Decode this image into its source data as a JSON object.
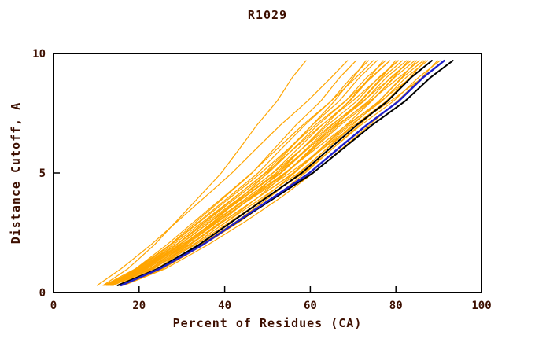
{
  "chart_data": {
    "type": "line",
    "title": "R1029",
    "xlabel": "Percent of Residues (CA)",
    "ylabel": "Distance Cutoff, A",
    "xlim": [
      0,
      100
    ],
    "ylim": [
      0,
      10
    ],
    "x_ticks": [
      0,
      20,
      40,
      60,
      80,
      100
    ],
    "y_ticks": [
      0,
      5,
      10
    ],
    "grid": false,
    "legend": false,
    "colors": {
      "orange": "#ffa500",
      "black": "#000000",
      "blue": "#2020cc",
      "axis": "#000000",
      "text": "#3d0f00"
    },
    "y_levels": [
      0.3,
      1,
      2,
      3,
      4,
      5,
      6,
      7,
      8,
      9,
      9.7
    ],
    "series": [
      {
        "color": "orange",
        "width": 1.2,
        "x": [
          11.6,
          17.4,
          23.6,
          28.8,
          34.0,
          39.2,
          43.4,
          47.5,
          52.2,
          55.8,
          59.0
        ]
      },
      {
        "color": "orange",
        "width": 1.2,
        "x": [
          10.2,
          15.8,
          22.8,
          29.1,
          35.4,
          41.7,
          47.3,
          53.0,
          59.3,
          64.9,
          68.7
        ]
      },
      {
        "color": "orange",
        "width": 1.2,
        "x": [
          12.5,
          19.5,
          27.2,
          33.6,
          40.0,
          46.4,
          51.5,
          56.6,
          62.4,
          66.9,
          70.7
        ]
      },
      {
        "color": "orange",
        "width": 1.2,
        "x": [
          14.9,
          22.7,
          30.5,
          37.6,
          44.1,
          50.0,
          55.2,
          60.4,
          65.6,
          70.1,
          73.0
        ]
      },
      {
        "color": "orange",
        "width": 1.2,
        "x": [
          11.8,
          19.2,
          27.4,
          34.2,
          41.0,
          47.8,
          53.2,
          58.7,
          64.8,
          69.6,
          73.6
        ]
      },
      {
        "color": "orange",
        "width": 1.2,
        "x": [
          13.3,
          19.2,
          26.5,
          33.1,
          39.7,
          46.3,
          52.2,
          58.2,
          64.8,
          70.7,
          74.7
        ]
      },
      {
        "color": "orange",
        "width": 1.2,
        "x": [
          12.8,
          20.4,
          28.7,
          35.6,
          42.5,
          49.4,
          54.9,
          60.4,
          66.7,
          71.5,
          75.6
        ]
      },
      {
        "color": "orange",
        "width": 1.2,
        "x": [
          15.2,
          23.5,
          31.8,
          39.4,
          46.3,
          52.5,
          58.0,
          63.5,
          69.0,
          73.9,
          77.0
        ]
      },
      {
        "color": "orange",
        "width": 1.2,
        "x": [
          12.0,
          20.0,
          28.6,
          35.8,
          43.0,
          50.2,
          56.0,
          61.7,
          68.2,
          73.2,
          77.6
        ]
      },
      {
        "color": "orange",
        "width": 1.2,
        "x": [
          13.5,
          19.8,
          27.5,
          34.5,
          41.5,
          48.5,
          54.8,
          61.1,
          68.1,
          74.4,
          78.6
        ]
      },
      {
        "color": "orange",
        "width": 1.2,
        "x": [
          13.0,
          21.0,
          29.6,
          36.8,
          44.0,
          51.2,
          57.0,
          62.7,
          69.2,
          74.2,
          78.6
        ]
      },
      {
        "color": "orange",
        "width": 1.2,
        "x": [
          15.5,
          24.1,
          32.8,
          40.7,
          47.9,
          54.4,
          60.1,
          65.9,
          71.6,
          76.7,
          79.9
        ]
      },
      {
        "color": "orange",
        "width": 1.2,
        "x": [
          12.3,
          20.5,
          29.5,
          37.0,
          44.5,
          52.0,
          58.0,
          64.0,
          70.8,
          76.0,
          80.5
        ]
      },
      {
        "color": "orange",
        "width": 1.2,
        "x": [
          13.6,
          20.1,
          28.0,
          35.2,
          42.4,
          49.6,
          56.1,
          62.6,
          69.8,
          76.2,
          80.6
        ]
      },
      {
        "color": "orange",
        "width": 1.2,
        "x": [
          13.3,
          21.5,
          30.5,
          38.0,
          45.5,
          53.0,
          59.0,
          65.0,
          71.8,
          77.0,
          81.5
        ]
      },
      {
        "color": "orange",
        "width": 1.2,
        "x": [
          15.8,
          24.8,
          33.8,
          42.0,
          49.5,
          56.3,
          62.3,
          68.3,
          74.3,
          79.5,
          82.9
        ]
      },
      {
        "color": "orange",
        "width": 1.2,
        "x": [
          12.4,
          20.9,
          30.1,
          37.8,
          45.5,
          53.2,
          59.4,
          65.5,
          72.5,
          77.8,
          82.5
        ]
      },
      {
        "color": "orange",
        "width": 1.2,
        "x": [
          13.8,
          20.5,
          28.8,
          36.3,
          43.8,
          51.3,
          58.0,
          64.8,
          72.3,
          79.0,
          83.5
        ]
      },
      {
        "color": "orange",
        "width": 1.2,
        "x": [
          13.4,
          21.9,
          31.1,
          38.8,
          46.5,
          54.2,
          60.4,
          66.5,
          73.5,
          78.8,
          83.5
        ]
      },
      {
        "color": "orange",
        "width": 1.2,
        "x": [
          15.9,
          25.2,
          34.4,
          42.9,
          50.6,
          57.5,
          63.7,
          69.8,
          76.0,
          81.4,
          84.8
        ]
      },
      {
        "color": "orange",
        "width": 1.2,
        "x": [
          12.5,
          21.2,
          30.7,
          38.6,
          46.5,
          54.4,
          60.7,
          67.0,
          74.2,
          79.7,
          84.4
        ]
      },
      {
        "color": "orange",
        "width": 1.2,
        "x": [
          13.9,
          20.8,
          29.3,
          37.0,
          44.7,
          52.4,
          59.3,
          66.2,
          73.9,
          80.8,
          85.5
        ]
      },
      {
        "color": "orange",
        "width": 1.2,
        "x": [
          13.6,
          22.4,
          32.0,
          40.0,
          48.0,
          56.0,
          62.4,
          68.8,
          76.0,
          81.6,
          86.4
        ]
      },
      {
        "color": "orange",
        "width": 1.2,
        "x": [
          16.1,
          25.6,
          35.1,
          43.8,
          51.7,
          58.8,
          65.1,
          71.4,
          77.7,
          83.3,
          86.8
        ]
      },
      {
        "color": "orange",
        "width": 1.2,
        "x": [
          12.7,
          21.8,
          31.6,
          39.8,
          48.0,
          56.2,
          62.8,
          69.3,
          76.7,
          82.4,
          87.4
        ]
      },
      {
        "color": "orange",
        "width": 1.2,
        "x": [
          14.0,
          21.2,
          30.0,
          38.0,
          46.0,
          54.0,
          61.2,
          68.4,
          76.4,
          83.6,
          88.4
        ]
      },
      {
        "color": "orange",
        "width": 1.2,
        "x": [
          13.7,
          22.8,
          32.6,
          40.8,
          49.0,
          57.2,
          63.8,
          70.3,
          77.7,
          83.4,
          88.4
        ]
      },
      {
        "color": "orange",
        "width": 1.2,
        "x": [
          16.4,
          26.2,
          36.1,
          45.1,
          53.3,
          60.7,
          67.2,
          73.8,
          80.3,
          86.1,
          89.7
        ]
      },
      {
        "color": "orange",
        "width": 1.2,
        "x": [
          13.9,
          23.1,
          33.2,
          41.6,
          50.0,
          58.4,
          65.1,
          71.8,
          79.4,
          85.3,
          90.3
        ]
      },
      {
        "color": "orange",
        "width": 1.2,
        "x": [
          13.2,
          20.8,
          30.0,
          38.4,
          46.8,
          55.2,
          62.8,
          70.3,
          78.7,
          86.3,
          91.3
        ]
      },
      {
        "color": "black",
        "width": 2,
        "x": [
          15.6,
          24.4,
          34.0,
          42.0,
          50.0,
          58.0,
          64.4,
          70.8,
          78.0,
          83.6,
          88.4
        ]
      },
      {
        "color": "black",
        "width": 2,
        "x": [
          15.0,
          24.5,
          34.8,
          43.4,
          52.0,
          60.6,
          67.5,
          74.4,
          82.1,
          88.1,
          93.3
        ]
      },
      {
        "color": "blue",
        "width": 2.4,
        "x": [
          15.8,
          24.9,
          34.9,
          43.2,
          51.5,
          59.8,
          66.4,
          73.1,
          80.6,
          86.4,
          91.3
        ]
      }
    ]
  }
}
